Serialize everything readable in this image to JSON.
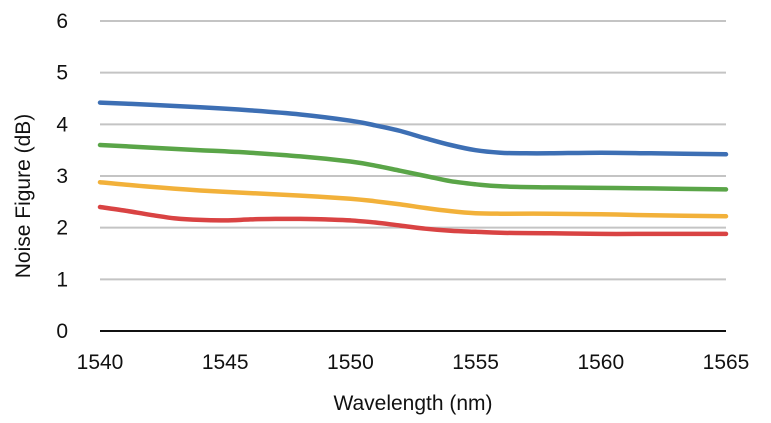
{
  "chart_data": {
    "type": "line",
    "xlabel": "Wavelength (nm)",
    "ylabel": "Noise Figure (dB)",
    "xlim": [
      1540,
      1565
    ],
    "ylim": [
      0,
      6
    ],
    "xticks": [
      "1540",
      "1545",
      "1550",
      "1555",
      "1560",
      "1565"
    ],
    "yticks": [
      "0",
      "1",
      "2",
      "3",
      "4",
      "5",
      "6"
    ],
    "grid": true,
    "legend": "none",
    "series": [
      {
        "color": "#3d6fb4",
        "x": [
          1540,
          1542,
          1544,
          1546,
          1548,
          1550,
          1551,
          1552,
          1553,
          1554,
          1555,
          1556,
          1557,
          1558,
          1560,
          1562,
          1565
        ],
        "y": [
          4.42,
          4.38,
          4.33,
          4.27,
          4.19,
          4.07,
          3.98,
          3.87,
          3.73,
          3.6,
          3.5,
          3.45,
          3.44,
          3.44,
          3.45,
          3.44,
          3.42
        ]
      },
      {
        "color": "#5aa548",
        "x": [
          1540,
          1542,
          1544,
          1546,
          1548,
          1550,
          1551,
          1552,
          1553,
          1554,
          1555,
          1556,
          1558,
          1560,
          1562,
          1565
        ],
        "y": [
          3.6,
          3.55,
          3.5,
          3.45,
          3.38,
          3.28,
          3.2,
          3.1,
          3.0,
          2.9,
          2.84,
          2.8,
          2.78,
          2.77,
          2.76,
          2.74
        ]
      },
      {
        "color": "#f2b13a",
        "x": [
          1540,
          1542,
          1544,
          1546,
          1548,
          1550,
          1551,
          1552,
          1553,
          1554,
          1555,
          1556,
          1558,
          1560,
          1562,
          1565
        ],
        "y": [
          2.88,
          2.79,
          2.72,
          2.67,
          2.62,
          2.56,
          2.51,
          2.45,
          2.38,
          2.32,
          2.28,
          2.27,
          2.27,
          2.26,
          2.24,
          2.22
        ]
      },
      {
        "color": "#d94343",
        "x": [
          1540,
          1541,
          1542,
          1543,
          1544,
          1545,
          1546,
          1547,
          1548,
          1549,
          1550,
          1551,
          1552,
          1553,
          1554,
          1555,
          1556,
          1558,
          1560,
          1562,
          1565
        ],
        "y": [
          2.4,
          2.33,
          2.25,
          2.18,
          2.15,
          2.14,
          2.16,
          2.17,
          2.17,
          2.16,
          2.14,
          2.1,
          2.04,
          1.98,
          1.94,
          1.92,
          1.9,
          1.89,
          1.88,
          1.88,
          1.88
        ]
      }
    ]
  }
}
